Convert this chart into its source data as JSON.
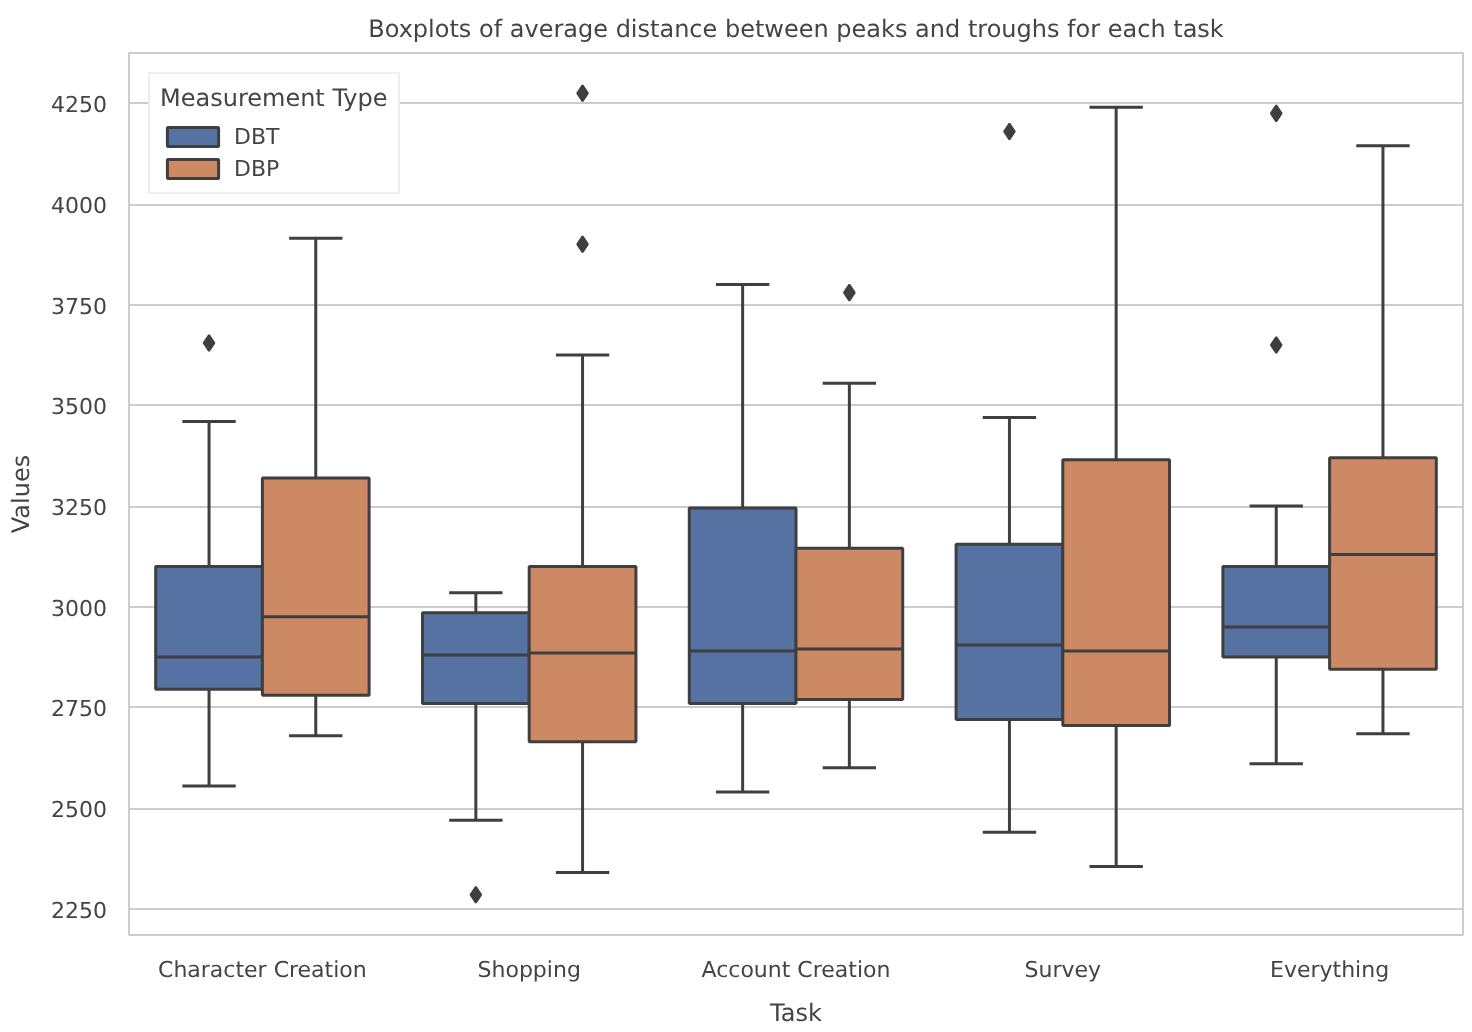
{
  "chart_data": {
    "type": "box",
    "title": "Boxplots of average distance between peaks and troughs for each task",
    "xlabel": "Task",
    "ylabel": "Values",
    "legend_title": "Measurement Type",
    "legend": "top left",
    "grid": "y",
    "categories": [
      "Character Creation",
      "Shopping",
      "Account Creation",
      "Survey",
      "Everything"
    ],
    "ylim": [
      2185,
      4375
    ],
    "yticks": [
      2250,
      2500,
      2750,
      3000,
      3250,
      3500,
      3750,
      4000,
      4250
    ],
    "series": [
      {
        "name": "DBT",
        "color": "#5572a3",
        "boxes": [
          {
            "low": 2555,
            "q1": 2795,
            "median": 2875,
            "q3": 3100,
            "high": 3460,
            "outliers": [
              3655
            ]
          },
          {
            "low": 2470,
            "q1": 2760,
            "median": 2880,
            "q3": 2985,
            "high": 3035,
            "outliers": [
              2285
            ]
          },
          {
            "low": 2540,
            "q1": 2760,
            "median": 2890,
            "q3": 3245,
            "high": 3800
          },
          {
            "low": 2440,
            "q1": 2720,
            "median": 2905,
            "q3": 3155,
            "high": 3470,
            "outliers": [
              4180
            ]
          },
          {
            "low": 2610,
            "q1": 2875,
            "median": 2950,
            "q3": 3100,
            "high": 3250,
            "outliers": [
              4225,
              3650
            ]
          }
        ]
      },
      {
        "name": "DBP",
        "color": "#cc8963",
        "boxes": [
          {
            "low": 2680,
            "q1": 2780,
            "median": 2975,
            "q3": 3320,
            "high": 3915
          },
          {
            "low": 2340,
            "q1": 2665,
            "median": 2885,
            "q3": 3100,
            "high": 3625,
            "outliers": [
              4275,
              3900
            ]
          },
          {
            "low": 2600,
            "q1": 2770,
            "median": 2895,
            "q3": 3145,
            "high": 3555,
            "outliers": [
              3780
            ]
          },
          {
            "low": 2355,
            "q1": 2705,
            "median": 2890,
            "q3": 3365,
            "high": 4240
          },
          {
            "low": 2685,
            "q1": 2845,
            "median": 3130,
            "q3": 3370,
            "high": 4145
          }
        ]
      }
    ]
  }
}
